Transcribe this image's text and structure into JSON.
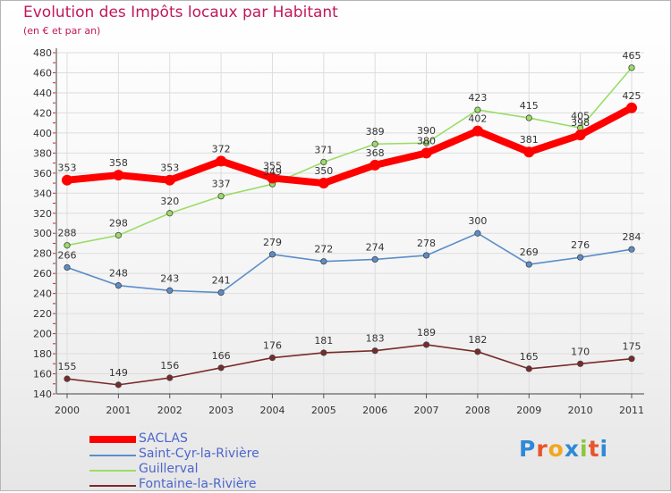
{
  "chart_data": {
    "type": "line",
    "title": "Evolution des Impôts locaux par Habitant",
    "subtitle": "(en € et par an)",
    "categories": [
      "2000",
      "2001",
      "2002",
      "2003",
      "2004",
      "2005",
      "2006",
      "2007",
      "2008",
      "2009",
      "2010",
      "2011"
    ],
    "ylim": [
      140,
      480
    ],
    "yticks": [
      140,
      160,
      180,
      200,
      220,
      240,
      260,
      280,
      300,
      320,
      340,
      360,
      380,
      400,
      420,
      440,
      460,
      480
    ],
    "grid": true,
    "legend_position": "bottom-left",
    "series": [
      {
        "name": "SACLAS",
        "color": "#ff0000",
        "values": [
          353,
          358,
          353,
          372,
          355,
          350,
          368,
          380,
          402,
          381,
          398,
          425
        ]
      },
      {
        "name": "Saint-Cyr-la-Rivière",
        "color": "#5b8ec9",
        "values": [
          266,
          248,
          243,
          241,
          279,
          272,
          274,
          278,
          300,
          269,
          276,
          284
        ]
      },
      {
        "name": "Guillerval",
        "color": "#99dd66",
        "values": [
          288,
          298,
          320,
          337,
          349,
          371,
          389,
          390,
          423,
          415,
          405,
          465
        ]
      },
      {
        "name": "Fontaine-la-Rivière",
        "color": "#7a2a2a",
        "values": [
          155,
          149,
          156,
          166,
          176,
          181,
          183,
          189,
          182,
          165,
          170,
          175
        ]
      }
    ]
  },
  "brand": {
    "letters": [
      "P",
      "r",
      "o",
      "x",
      "i",
      "t",
      "i"
    ],
    "colors": [
      "#2e8ad8",
      "#e8542a",
      "#f2a81d",
      "#2e8ad8",
      "#8cc63e",
      "#e8542a",
      "#2e8ad8"
    ]
  }
}
